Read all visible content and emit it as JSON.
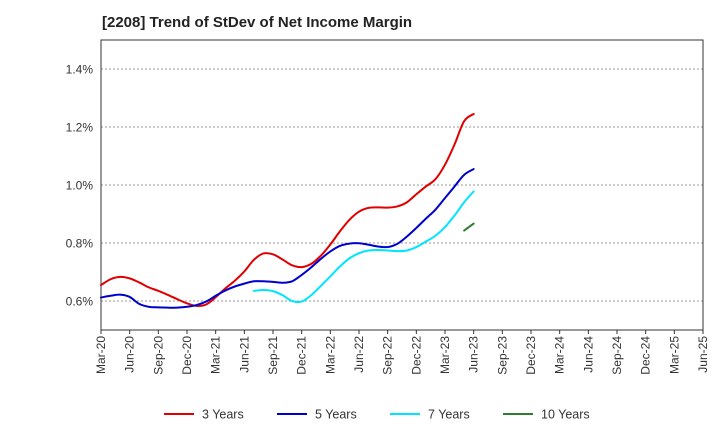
{
  "chart_data": {
    "type": "line",
    "title": "[2208]  Trend of StDev of Net Income Margin",
    "xlabel": "",
    "ylabel": "",
    "x_ticks": [
      "Mar-20",
      "Jun-20",
      "Sep-20",
      "Dec-20",
      "Mar-21",
      "Jun-21",
      "Sep-21",
      "Dec-21",
      "Mar-22",
      "Jun-22",
      "Sep-22",
      "Dec-22",
      "Mar-23",
      "Jun-23",
      "Sep-23",
      "Dec-23",
      "Mar-24",
      "Jun-24",
      "Sep-24",
      "Dec-24",
      "Mar-25",
      "Jun-25"
    ],
    "y_ticks": [
      0.6,
      0.8,
      1.0,
      1.2,
      1.4
    ],
    "y_tick_labels": [
      "0.6%",
      "0.8%",
      "1.0%",
      "1.2%",
      "1.4%"
    ],
    "ylim": [
      0.5,
      1.5
    ],
    "grid": "horizontal-dashed",
    "legend_position": "bottom",
    "series": [
      {
        "name": "3 Years",
        "color": "#e00000",
        "start_index": 0,
        "values": [
          0.655,
          0.675,
          0.683,
          0.678,
          0.664,
          0.647,
          0.635,
          0.621,
          0.606,
          0.592,
          0.583,
          0.588,
          0.613,
          0.643,
          0.67,
          0.702,
          0.742,
          0.764,
          0.761,
          0.743,
          0.723,
          0.717,
          0.728,
          0.756,
          0.795,
          0.84,
          0.88,
          0.908,
          0.921,
          0.923,
          0.922,
          0.926,
          0.94,
          0.968,
          0.995,
          1.02,
          1.07,
          1.14,
          1.22,
          1.245
        ]
      },
      {
        "name": "5 Years",
        "color": "#0000cc",
        "start_index": 0,
        "values": [
          0.612,
          0.618,
          0.622,
          0.614,
          0.59,
          0.58,
          0.578,
          0.577,
          0.577,
          0.58,
          0.586,
          0.598,
          0.618,
          0.636,
          0.65,
          0.66,
          0.668,
          0.668,
          0.666,
          0.663,
          0.668,
          0.69,
          0.716,
          0.745,
          0.771,
          0.79,
          0.798,
          0.799,
          0.794,
          0.788,
          0.786,
          0.797,
          0.822,
          0.852,
          0.884,
          0.915,
          0.955,
          0.995,
          1.035,
          1.055
        ]
      },
      {
        "name": "7 Years",
        "color": "#00e5ff",
        "start_index": 16,
        "values": [
          0.635,
          0.638,
          0.634,
          0.62,
          0.6,
          0.598,
          0.62,
          0.652,
          0.685,
          0.719,
          0.747,
          0.765,
          0.774,
          0.776,
          0.774,
          0.772,
          0.774,
          0.786,
          0.805,
          0.825,
          0.855,
          0.895,
          0.94,
          0.978
        ]
      },
      {
        "name": "10 Years",
        "color": "#2e7d32",
        "start_index": 38,
        "values": [
          0.843,
          0.867
        ]
      }
    ]
  }
}
